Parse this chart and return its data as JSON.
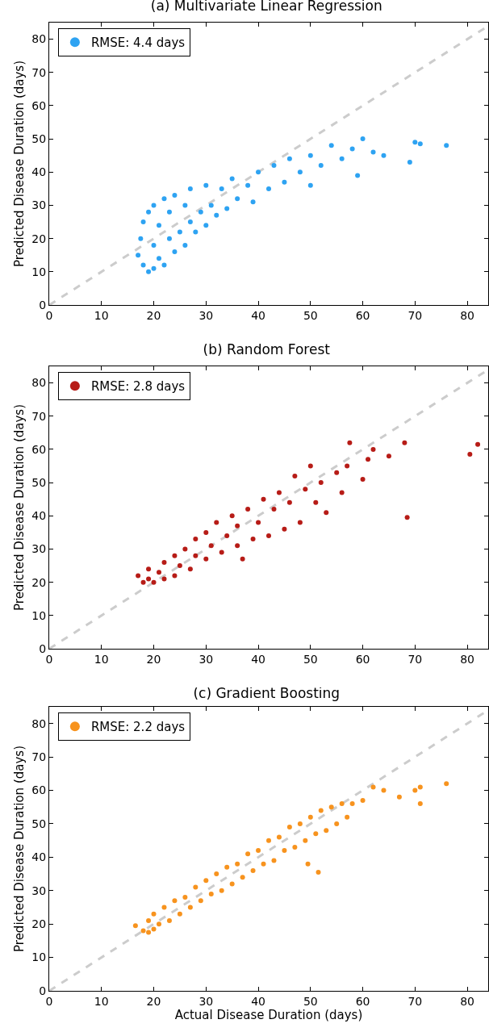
{
  "chart_data": [
    {
      "type": "scatter",
      "title": "(a) Multivariate Linear Regression",
      "ylabel": "Predicted Disease Duration (days)",
      "xlim": [
        0,
        84
      ],
      "ylim": [
        0,
        85
      ],
      "xticks": [
        0,
        10,
        20,
        30,
        40,
        50,
        60,
        70,
        80
      ],
      "yticks": [
        0,
        10,
        20,
        30,
        40,
        50,
        60,
        70,
        80
      ],
      "legend": "top left",
      "marker": "circle",
      "series": [
        {
          "type": "line",
          "color": "#cccccc",
          "line_style": "dashed",
          "marker": "none",
          "x": [
            0,
            84
          ],
          "values": [
            0,
            84
          ]
        },
        {
          "name": "RMSE: 4.4 days",
          "color": "#2ea3f2",
          "x": [
            17,
            17.5,
            18,
            18,
            19,
            19,
            20,
            20,
            20,
            21,
            21,
            22,
            22,
            23,
            23,
            24,
            24,
            25,
            26,
            26,
            27,
            27,
            28,
            29,
            30,
            30,
            31,
            32,
            33,
            34,
            35,
            36,
            38,
            39,
            40,
            42,
            43,
            45,
            46,
            48,
            50,
            50,
            52,
            54,
            56,
            58,
            59,
            60,
            62,
            64,
            69,
            70,
            71,
            76
          ],
          "values": [
            15,
            20,
            12,
            25,
            10,
            28,
            11,
            18,
            30,
            14,
            24,
            12,
            32,
            20,
            28,
            16,
            33,
            22,
            18,
            30,
            25,
            35,
            22,
            28,
            24,
            36,
            30,
            27,
            35,
            29,
            38,
            32,
            36,
            31,
            40,
            35,
            42,
            37,
            44,
            40,
            45,
            36,
            42,
            48,
            44,
            47,
            39,
            50,
            46,
            45,
            43,
            49,
            48.5,
            48
          ]
        }
      ]
    },
    {
      "type": "scatter",
      "title": "(b) Random Forest",
      "ylabel": "Predicted Disease Duration (days)",
      "xlim": [
        0,
        84
      ],
      "ylim": [
        0,
        85
      ],
      "xticks": [
        0,
        10,
        20,
        30,
        40,
        50,
        60,
        70,
        80
      ],
      "yticks": [
        0,
        10,
        20,
        30,
        40,
        50,
        60,
        70,
        80
      ],
      "legend": "top left",
      "marker": "circle",
      "series": [
        {
          "type": "line",
          "color": "#cccccc",
          "line_style": "dashed",
          "marker": "none",
          "x": [
            0,
            84
          ],
          "values": [
            0,
            84
          ]
        },
        {
          "name": "RMSE: 2.8 days",
          "color": "#b71c17",
          "x": [
            17,
            18,
            19,
            19,
            20,
            21,
            22,
            22,
            24,
            24,
            25,
            26,
            27,
            28,
            28,
            30,
            30,
            31,
            32,
            33,
            34,
            35,
            36,
            36,
            37,
            38,
            39,
            40,
            41,
            42,
            43,
            44,
            45,
            46,
            47,
            48,
            49,
            50,
            51,
            52,
            53,
            55,
            56,
            57,
            57.5,
            60,
            61,
            62,
            65,
            68,
            68.5,
            80.5,
            82
          ],
          "values": [
            22,
            20,
            21,
            24,
            20,
            23,
            26,
            21,
            22,
            28,
            25,
            30,
            24,
            28,
            33,
            27,
            35,
            31,
            38,
            29,
            34,
            40,
            31,
            37,
            27,
            42,
            33,
            38,
            45,
            34,
            42,
            47,
            36,
            44,
            52,
            38,
            48,
            55,
            44,
            50,
            41,
            53,
            47,
            55,
            62,
            51,
            57,
            60,
            58,
            62,
            39.5,
            58.5,
            61.5
          ]
        }
      ]
    },
    {
      "type": "scatter",
      "title": "(c) Gradient Boosting",
      "xlabel": "Actual Disease Duration (days)",
      "ylabel": "Predicted Disease Duration (days)",
      "xlim": [
        0,
        84
      ],
      "ylim": [
        0,
        85
      ],
      "xticks": [
        0,
        10,
        20,
        30,
        40,
        50,
        60,
        70,
        80
      ],
      "yticks": [
        0,
        10,
        20,
        30,
        40,
        50,
        60,
        70,
        80
      ],
      "legend": "top left",
      "marker": "circle",
      "series": [
        {
          "type": "line",
          "color": "#cccccc",
          "line_style": "dashed",
          "marker": "none",
          "x": [
            0,
            84
          ],
          "values": [
            0,
            84
          ]
        },
        {
          "name": "RMSE: 2.2 days",
          "color": "#f7931e",
          "x": [
            16.5,
            18,
            19,
            19,
            20,
            20,
            21,
            22,
            23,
            24,
            25,
            26,
            27,
            28,
            29,
            30,
            31,
            32,
            33,
            34,
            35,
            36,
            37,
            38,
            39,
            40,
            41,
            42,
            43,
            44,
            45,
            46,
            47,
            48,
            49,
            49.5,
            50,
            51,
            51.5,
            52,
            53,
            54,
            55,
            56,
            57,
            58,
            60,
            62,
            64,
            67,
            70,
            71,
            71,
            76
          ],
          "values": [
            19.5,
            18,
            17.5,
            21,
            18.5,
            23,
            20,
            25,
            21,
            27,
            23,
            28,
            25,
            31,
            27,
            33,
            29,
            35,
            30,
            37,
            32,
            38,
            34,
            41,
            36,
            42,
            38,
            45,
            39,
            46,
            42,
            49,
            43,
            50,
            45,
            38,
            52,
            47,
            35.5,
            54,
            48,
            55,
            50,
            56,
            52,
            56,
            57,
            61,
            60,
            58,
            60,
            56,
            61,
            62
          ]
        }
      ]
    }
  ]
}
